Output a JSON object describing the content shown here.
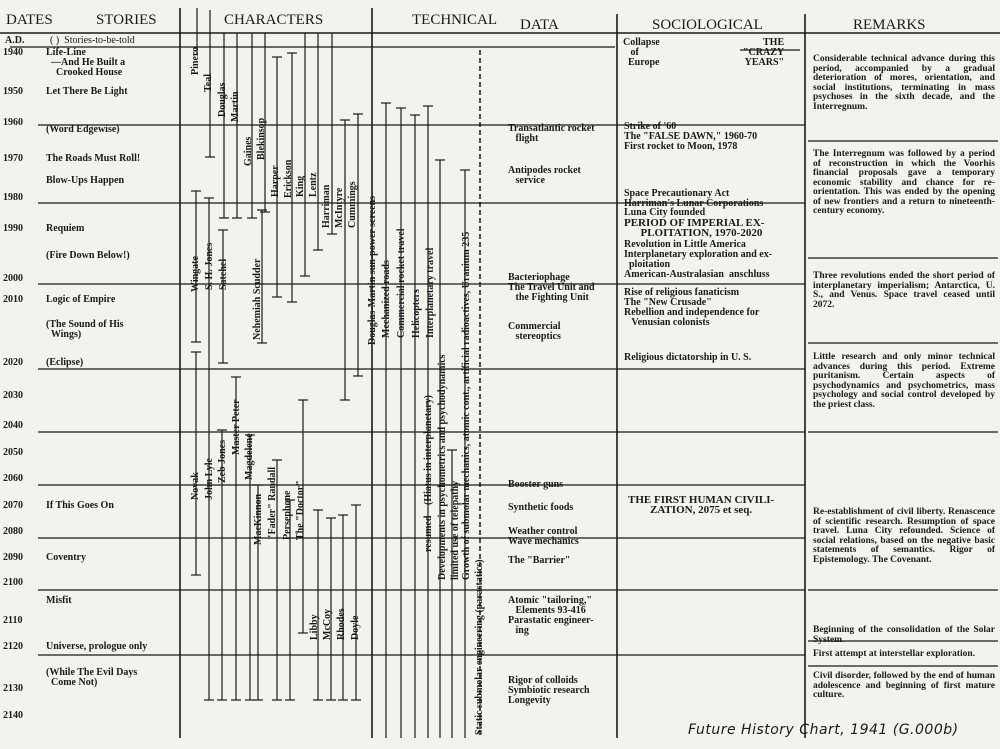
{
  "headers": {
    "dates": "DATES",
    "stories": "STORIES",
    "characters": "CHARACTERS",
    "technical": "TECHNICAL",
    "data": "DATA",
    "sociological": "SOCIOLOGICAL",
    "remarks": "REMARKS",
    "ad": "A.D.",
    "legend": "( )  Stories-to-be-told"
  },
  "dates": [
    "1940",
    "1950",
    "1960",
    "1970",
    "1980",
    "1990",
    "2000",
    "2010",
    "2020",
    "2030",
    "2040",
    "2050",
    "2060",
    "2070",
    "2080",
    "2090",
    "2100",
    "2110",
    "2120",
    "2130",
    "2140"
  ],
  "stories": [
    "Life-Line\n  —And He Built a\n    Crooked House",
    "Let There Be Light",
    "(Word Edgewise)",
    "The Roads Must Roll!",
    "Blow-Ups Happen",
    "Requiem",
    "(Fire Down Below!)",
    "Logic of Empire",
    "(The Sound of His\n  Wings)",
    "(Eclipse)",
    "If This Goes On",
    "Coventry",
    "Misfit",
    "Universe, prologue only",
    "(While The Evil Days\n  Come Not)"
  ],
  "characters": [
    "Pinero",
    "Teal",
    "Douglas",
    "Martin",
    "Gaines",
    "Blekinsop",
    "Harper",
    "Erickson",
    "King",
    "Lentz",
    "Harriman",
    "McIntyre",
    "Cummings",
    "Wingate",
    "S. H. Jones",
    "Satchel",
    "Nehemiah Scudder",
    "Novak",
    "John Lyle",
    "Zeb Jones",
    "Master Peter",
    "Magdelene",
    "MacKinnon",
    "\"Fader\" Randall",
    "Persephone",
    "The \"Doctor\"",
    "Libby",
    "McCoy",
    "Rhodes",
    "Doyle"
  ],
  "technical": [
    "Douglas-Martin sun-power screens",
    "Mechanized roads",
    "Commercial rocket travel",
    "Helicopters",
    "Interplanetary travel",
    "(Hiatus in interplanetary)",
    "resumed",
    "Developments in psychometrics and psychodynamics",
    "limited use of telepathy",
    "Growth of submolar mechanics, atomic cont., artificial radioactives, Uranium 235",
    "Static submolar engineering (parastatics)"
  ],
  "data": [
    "Transatlantic rocket\n   flight",
    "Antipodes rocket\n   service",
    "Bacteriophage",
    "The Travel Unit and\n   the Fighting Unit",
    "Commercial\n   stereoptics",
    "Booster guns",
    "Synthetic foods",
    "Weather control",
    "Wave mechanics",
    "The \"Barrier\"",
    "Atomic \"tailoring,\"\n   Elements 93-416",
    "Parastatic engineer-\n   ing",
    "Rigor of colloids\nSymbiotic research\nLongevity"
  ],
  "sociological": [
    "Collapse\n   of\n  Europe",
    "   THE\n\"CRAZY\nYEARS\"",
    "Strike of '60",
    "The \"FALSE DAWN,\" 1960-70",
    "First rocket to Moon, 1978",
    "Space Precautionary Act",
    "Harriman's Lunar Corporations",
    "Luna City founded",
    "PERIOD OF IMPERIAL EX-\n      PLOITATION, 1970-2020",
    "Revolution in Little America",
    "Interplanetary exploration and ex-\n  ploitation",
    "American-Australasian  anschluss",
    "Rise of religious fanaticism",
    "The \"New Crusade\"",
    "Rebellion and independence for\n   Venusian colonists",
    "Religious dictatorship in U. S.",
    "THE FIRST HUMAN CIVILI-\nZATION, 2075 et seq."
  ],
  "remarks": [
    "Considerable technical advance during this period, accompanied by a gradual deterioration of mores, orientation, and social institutions, terminating in mass psychoses in the sixth decade, and the Interregnum.",
    "The Interregnum was followed by a period of reconstruction in which the Voorhis financial proposals gave a temporary economic stability and chance for re-orientation. This was ended by the opening of new frontiers and a return to nineteenth-century economy.",
    "Three revolutions ended the short period of interplanetary imperialism; Antarctica, U. S., and Venus. Space travel ceased until 2072.",
    "Little research and only minor technical advances during this period. Extreme puritanism. Certain aspects of psychodynamics and psychometrics, mass psychology and social control developed by the priest class.",
    "Re-establishment of civil liberty. Renascence of scientific research. Resumption of space travel. Luna City refounded. Science of social relations, based on the negative basic statements of semantics. Rigor of Epistemology. The Covenant.",
    "Beginning of the consolidation of the Solar System.",
    "First attempt at interstellar exploration.",
    "Civil disorder, followed by the end of human adolescence and beginning of first mature culture."
  ],
  "footer": "Future History Chart, 1941 (G.000b)",
  "colors": {
    "paper": "#f2f2ef",
    "ink": "#1a1a1a"
  }
}
